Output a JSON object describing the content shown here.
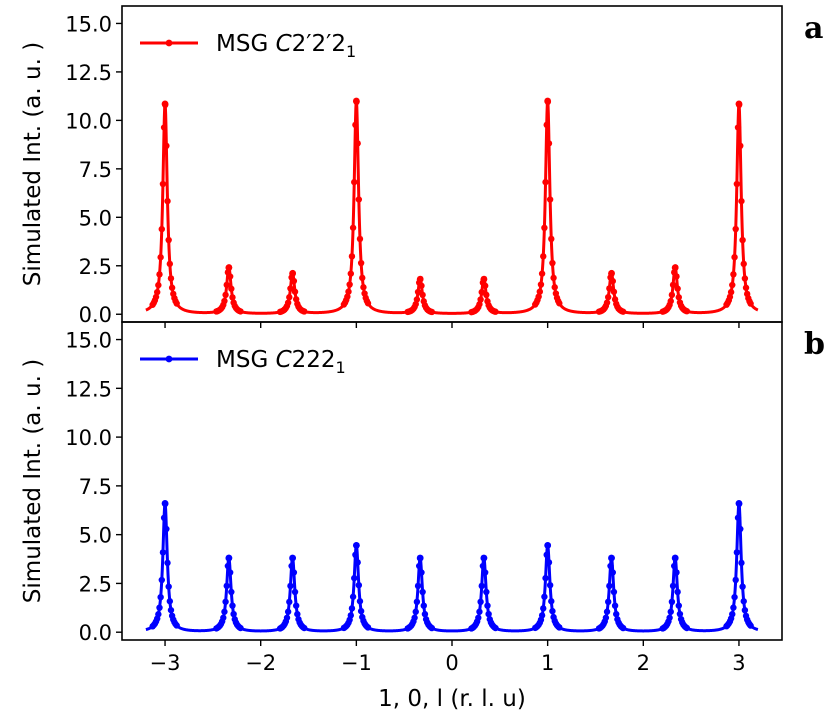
{
  "chart_data": {
    "type": "line",
    "xlabel": "1, 0, l (r. l. u)",
    "x_ticks": [
      -3,
      -2,
      -1,
      0,
      1,
      2,
      3
    ],
    "x_tick_labels": [
      "−3",
      "−2",
      "−1",
      "0",
      "1",
      "2",
      "3"
    ],
    "xlim": [
      -3.45,
      3.45
    ],
    "panels": [
      {
        "id": "a",
        "letter": "a",
        "ylabel": "Simulated Int. (a. u. )",
        "ylim": [
          -0.4,
          15.9
        ],
        "y_ticks": [
          0.0,
          2.5,
          5.0,
          7.5,
          10.0,
          12.5,
          15.0
        ],
        "y_tick_labels": [
          "0.0",
          "2.5",
          "5.0",
          "7.5",
          "10.0",
          "12.5",
          "15.0"
        ],
        "legend_position": "top-left",
        "series": [
          {
            "name_main": "MSG C2′2′2",
            "name_sub": "1",
            "color": "#ff0000",
            "x_range": [
              -3.2,
              3.2
            ],
            "peak_width": 0.028,
            "peaks": [
              {
                "x": -3.0,
                "y": 10.85
              },
              {
                "x": -2.333,
                "y": 2.4
              },
              {
                "x": -1.667,
                "y": 2.1
              },
              {
                "x": -1.0,
                "y": 11.0
              },
              {
                "x": -0.333,
                "y": 1.8
              },
              {
                "x": 0.333,
                "y": 1.8
              },
              {
                "x": 1.0,
                "y": 11.0
              },
              {
                "x": 1.667,
                "y": 2.1
              },
              {
                "x": 2.333,
                "y": 2.4
              },
              {
                "x": 3.0,
                "y": 10.85
              }
            ]
          }
        ]
      },
      {
        "id": "b",
        "letter": "b",
        "ylabel": "Simulated Int. (a. u. )",
        "ylim": [
          -0.4,
          15.9
        ],
        "y_ticks": [
          0.0,
          2.5,
          5.0,
          7.5,
          10.0,
          12.5,
          15.0
        ],
        "y_tick_labels": [
          "0.0",
          "2.5",
          "5.0",
          "7.5",
          "10.0",
          "12.5",
          "15.0"
        ],
        "legend_position": "top-left",
        "series": [
          {
            "name_main": "MSG C222",
            "name_sub": "1",
            "color": "#0000ff",
            "x_range": [
              -3.2,
              3.2
            ],
            "peak_width": 0.028,
            "peaks": [
              {
                "x": -3.0,
                "y": 6.6
              },
              {
                "x": -2.333,
                "y": 3.8
              },
              {
                "x": -1.667,
                "y": 3.8
              },
              {
                "x": -1.0,
                "y": 4.45
              },
              {
                "x": -0.333,
                "y": 3.8
              },
              {
                "x": 0.333,
                "y": 3.8
              },
              {
                "x": 1.0,
                "y": 4.45
              },
              {
                "x": 1.667,
                "y": 3.8
              },
              {
                "x": 2.333,
                "y": 3.8
              },
              {
                "x": 3.0,
                "y": 6.6
              }
            ]
          }
        ]
      }
    ]
  }
}
